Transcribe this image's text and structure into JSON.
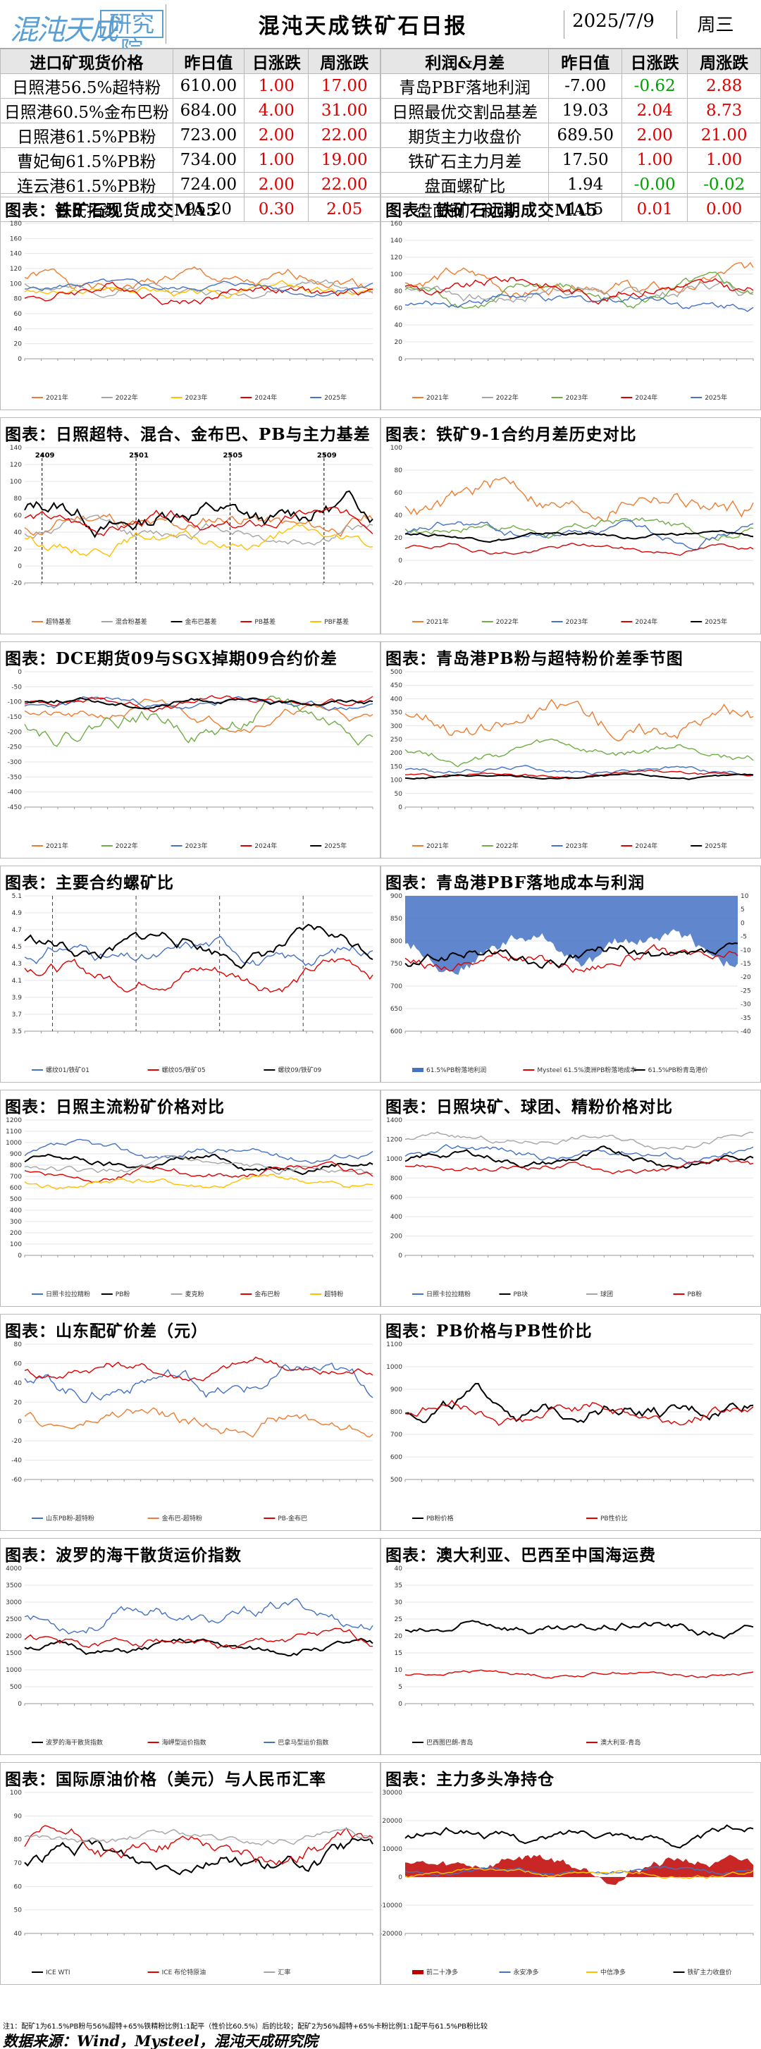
{
  "header": {
    "logo_text": "混沌天成",
    "logo_box": "研究院",
    "title": "混沌天成铁矿石日报",
    "date": "2025/7/9",
    "weekday": "周三"
  },
  "left_table": {
    "headers": [
      "进口矿现货价格",
      "昨日值",
      "日涨跌",
      "周涨跌"
    ],
    "rows": [
      {
        "name": "日照港56.5%超特粉",
        "prev": "610.00",
        "day": "1.00",
        "day_color": "red",
        "week": "17.00",
        "week_color": "red"
      },
      {
        "name": "日照港60.5%金布巴粉",
        "prev": "684.00",
        "day": "4.00",
        "day_color": "red",
        "week": "31.00",
        "week_color": "red"
      },
      {
        "name": "日照港61.5%PB粉",
        "prev": "723.00",
        "day": "2.00",
        "day_color": "red",
        "week": "22.00",
        "week_color": "red"
      },
      {
        "name": "曹妃甸61.5%PB粉",
        "prev": "734.00",
        "day": "1.00",
        "day_color": "red",
        "week": "19.00",
        "week_color": "red"
      },
      {
        "name": "连云港61.5%PB粉",
        "prev": "724.00",
        "day": "2.00",
        "day_color": "red",
        "week": "22.00",
        "week_color": "red"
      },
      {
        "name": "普氏指数",
        "prev": "95.20",
        "day": "0.30",
        "day_color": "red",
        "week": "2.05",
        "week_color": "red"
      }
    ]
  },
  "right_table": {
    "headers": [
      "利润&月差",
      "昨日值",
      "日涨跌",
      "周涨跌"
    ],
    "rows": [
      {
        "name": "青岛PBF落地利润",
        "prev": "-7.00",
        "day": "-0.62",
        "day_color": "grn",
        "week": "2.88",
        "week_color": "red"
      },
      {
        "name": "日照最优交割品基差",
        "prev": "19.03",
        "day": "2.04",
        "day_color": "red",
        "week": "8.73",
        "week_color": "red"
      },
      {
        "name": "期货主力收盘价",
        "prev": "689.50",
        "day": "2.00",
        "day_color": "red",
        "week": "21.00",
        "week_color": "red"
      },
      {
        "name": "铁矿石主力月差",
        "prev": "17.50",
        "day": "1.00",
        "day_color": "red",
        "week": "1.00",
        "week_color": "red"
      },
      {
        "name": "盘面螺矿比",
        "prev": "1.94",
        "day": "-0.00",
        "day_color": "grn",
        "week": "-0.02",
        "week_color": "grn"
      },
      {
        "name": "盘面钢厂利润",
        "prev": "1.15",
        "day": "0.01",
        "day_color": "red",
        "week": "0.00",
        "week_color": "red"
      }
    ]
  },
  "colors": {
    "red": "#e00000",
    "grn": "#00a000",
    "orange": "#ed7d31",
    "gray": "#a5a5a5",
    "yellow": "#ffc000",
    "blue": "#4472c4",
    "green": "#70ad47",
    "black": "#000000",
    "darkred": "#c00000"
  },
  "chart_data": [
    {
      "title": "图表：铁矿石现货成交MA5",
      "type": "line",
      "ylim": [
        0,
        180
      ],
      "yticks": [
        "0",
        "20",
        "40",
        "60",
        "80",
        "100",
        "120",
        "140",
        "160",
        "180"
      ],
      "series": [
        {
          "name": "2021年",
          "color": "orange",
          "seed": 1,
          "base": 100,
          "amp": 30
        },
        {
          "name": "2022年",
          "color": "gray",
          "seed": 2,
          "base": 95,
          "amp": 20
        },
        {
          "name": "2023年",
          "color": "yellow",
          "seed": 3,
          "base": 90,
          "amp": 20
        },
        {
          "name": "2024年",
          "color": "red",
          "seed": 4,
          "base": 90,
          "amp": 25
        },
        {
          "name": "2025年",
          "color": "blue",
          "seed": 5,
          "base": 95,
          "amp": 15
        }
      ]
    },
    {
      "title": "图表：铁矿石远期成交MA5",
      "type": "line",
      "ylim": [
        0,
        160
      ],
      "yticks": [
        "0",
        "20",
        "40",
        "60",
        "80",
        "100",
        "120",
        "140",
        "160"
      ],
      "series": [
        {
          "name": "2021年",
          "color": "orange",
          "seed": 6,
          "base": 90,
          "amp": 30
        },
        {
          "name": "2022年",
          "color": "gray",
          "seed": 7,
          "base": 80,
          "amp": 25
        },
        {
          "name": "2023年",
          "color": "green",
          "seed": 8,
          "base": 75,
          "amp": 25
        },
        {
          "name": "2024年",
          "color": "red",
          "seed": 9,
          "base": 85,
          "amp": 25
        },
        {
          "name": "2025年",
          "color": "blue",
          "seed": 10,
          "base": 70,
          "amp": 20
        }
      ]
    },
    {
      "title": "图表：日照超特、混合、金布巴、PB与主力基差",
      "type": "line",
      "ylim": [
        -20,
        140
      ],
      "yticks": [
        "-20",
        "0",
        "20",
        "40",
        "60",
        "80",
        "100",
        "120",
        "140"
      ],
      "annotations": [
        "2409",
        "2501",
        "2505",
        "2509"
      ],
      "series": [
        {
          "name": "超特基差",
          "color": "orange",
          "seed": 11,
          "base": 50,
          "amp": 30
        },
        {
          "name": "混合粉基差",
          "color": "gray",
          "seed": 12,
          "base": 40,
          "amp": 25
        },
        {
          "name": "金布巴基差",
          "color": "black",
          "seed": 13,
          "base": 60,
          "amp": 40
        },
        {
          "name": "PB基差",
          "color": "red",
          "seed": 14,
          "base": 50,
          "amp": 25
        },
        {
          "name": "PBF基差",
          "color": "yellow",
          "seed": 15,
          "base": 30,
          "amp": 25
        }
      ]
    },
    {
      "title": "图表：铁矿9-1合约月差历史对比",
      "type": "line",
      "ylim": [
        -20,
        100
      ],
      "yticks": [
        "-20",
        "0",
        "20",
        "40",
        "60",
        "80",
        "100"
      ],
      "series": [
        {
          "name": "2021年",
          "color": "orange",
          "seed": 16,
          "base": 55,
          "amp": 30
        },
        {
          "name": "2022年",
          "color": "green",
          "seed": 17,
          "base": 30,
          "amp": 15
        },
        {
          "name": "2023年",
          "color": "blue",
          "seed": 18,
          "base": 25,
          "amp": 15
        },
        {
          "name": "2024年",
          "color": "red",
          "seed": 19,
          "base": 10,
          "amp": 8
        },
        {
          "name": "2025年",
          "color": "black",
          "seed": 20,
          "base": 22,
          "amp": 6
        }
      ]
    },
    {
      "title": "图表：DCE期货09与SGX掉期09合约价差",
      "type": "line",
      "ylim": [
        -450,
        0
      ],
      "yticks": [
        "-450",
        "-400",
        "-350",
        "-300",
        "-250",
        "-200",
        "-150",
        "-100",
        "-50",
        "0"
      ],
      "series": [
        {
          "name": "2021年",
          "color": "orange",
          "seed": 21,
          "base": -140,
          "amp": 60
        },
        {
          "name": "2022年",
          "color": "green",
          "seed": 22,
          "base": -160,
          "amp": 100
        },
        {
          "name": "2023年",
          "color": "blue",
          "seed": 23,
          "base": -110,
          "amp": 40
        },
        {
          "name": "2024年",
          "color": "red",
          "seed": 24,
          "base": -100,
          "amp": 40
        },
        {
          "name": "2025年",
          "color": "black",
          "seed": 25,
          "base": -100,
          "amp": 30
        }
      ]
    },
    {
      "title": "图表：青岛港PB粉与超特粉价差季节图",
      "type": "line",
      "ylim": [
        0,
        500
      ],
      "yticks": [
        "0",
        "50",
        "100",
        "150",
        "200",
        "250",
        "300",
        "350",
        "400",
        "450",
        "500"
      ],
      "series": [
        {
          "name": "2021年",
          "color": "orange",
          "seed": 26,
          "base": 320,
          "amp": 120
        },
        {
          "name": "2022年",
          "color": "green",
          "seed": 27,
          "base": 200,
          "amp": 60
        },
        {
          "name": "2023年",
          "color": "blue",
          "seed": 28,
          "base": 140,
          "amp": 30
        },
        {
          "name": "2024年",
          "color": "red",
          "seed": 29,
          "base": 120,
          "amp": 20
        },
        {
          "name": "2025年",
          "color": "black",
          "seed": 30,
          "base": 110,
          "amp": 15
        }
      ]
    },
    {
      "title": "图表：主要合约螺矿比",
      "type": "line",
      "ylim": [
        3.5,
        5.1
      ],
      "yticks": [
        "3.5",
        "3.7",
        "3.9",
        "4.1",
        "4.3",
        "4.5",
        "4.7",
        "4.9",
        "5.1"
      ],
      "series": [
        {
          "name": "螺纹01/铁矿01",
          "color": "blue",
          "seed": 31,
          "base": 4.4,
          "amp": 0.3
        },
        {
          "name": "螺纹05/铁矿05",
          "color": "red",
          "seed": 32,
          "base": 4.2,
          "amp": 0.3
        },
        {
          "name": "螺纹09/铁矿09",
          "color": "black",
          "seed": 33,
          "base": 4.5,
          "amp": 0.3
        }
      ]
    },
    {
      "title": "图表：青岛港PBF落地成本与利润",
      "type": "area-line",
      "ylim": [
        600,
        900
      ],
      "yticks": [
        "600",
        "650",
        "700",
        "750",
        "800",
        "850",
        "900"
      ],
      "y2ticks": [
        "-40",
        "-35",
        "-30",
        "-25",
        "-20",
        "-15",
        "-10",
        "-5",
        "0",
        "5",
        "10"
      ],
      "series": [
        {
          "name": "61.5%PB粉落地利润",
          "color": "blue",
          "seed": 34,
          "base": -8,
          "amp": 12
        },
        {
          "name": "Mysteel 61.5%澳洲PB粉落地成本",
          "color": "red",
          "seed": 35,
          "base": 760,
          "amp": 50
        },
        {
          "name": "61.5%PB粉青岛港价",
          "color": "black",
          "seed": 36,
          "base": 760,
          "amp": 50
        }
      ]
    },
    {
      "title": "图表：日照主流粉矿价格对比",
      "type": "line",
      "ylim": [
        0,
        1200
      ],
      "yticks": [
        "0",
        "100",
        "200",
        "300",
        "400",
        "500",
        "600",
        "700",
        "800",
        "900",
        "1000",
        "1100",
        "1200"
      ],
      "series": [
        {
          "name": "日照卡拉拉精粉",
          "color": "blue",
          "seed": 37,
          "base": 900,
          "amp": 120
        },
        {
          "name": "PB粉",
          "color": "black",
          "seed": 38,
          "base": 820,
          "amp": 120
        },
        {
          "name": "麦克粉",
          "color": "gray",
          "seed": 39,
          "base": 760,
          "amp": 110
        },
        {
          "name": "金布巴粉",
          "color": "red",
          "seed": 40,
          "base": 740,
          "amp": 110
        },
        {
          "name": "超特粉",
          "color": "yellow",
          "seed": 41,
          "base": 640,
          "amp": 110
        }
      ]
    },
    {
      "title": "图表：日照块矿、球团、精粉价格对比",
      "type": "line",
      "ylim": [
        0,
        1400
      ],
      "yticks": [
        "0",
        "200",
        "400",
        "600",
        "800",
        "1000",
        "1200",
        "1400"
      ],
      "series": [
        {
          "name": "日照卡拉拉精粉",
          "color": "blue",
          "seed": 42,
          "base": 1050,
          "amp": 150
        },
        {
          "name": "PB块",
          "color": "black",
          "seed": 43,
          "base": 1000,
          "amp": 140
        },
        {
          "name": "球团",
          "color": "gray",
          "seed": 44,
          "base": 1200,
          "amp": 120
        },
        {
          "name": "PB粉",
          "color": "red",
          "seed": 45,
          "base": 900,
          "amp": 120
        }
      ]
    },
    {
      "title": "图表：山东配矿价差（元）",
      "type": "line",
      "ylim": [
        -60,
        80
      ],
      "yticks": [
        "-60",
        "-40",
        "-20",
        "0",
        "20",
        "40",
        "60",
        "80"
      ],
      "series": [
        {
          "name": "山东PB粉-超特粉",
          "color": "blue",
          "seed": 46,
          "base": 40,
          "amp": 30
        },
        {
          "name": "金布巴-超特粉",
          "color": "orange",
          "seed": 47,
          "base": 0,
          "amp": 25
        },
        {
          "name": "PB-金布巴",
          "color": "red",
          "seed": 48,
          "base": 55,
          "amp": 20
        }
      ]
    },
    {
      "title": "图表：PB价格与PB性价比",
      "type": "line",
      "ylim": [
        500,
        1100
      ],
      "yticks": [
        "500",
        "600",
        "700",
        "800",
        "900",
        "1000",
        "1100"
      ],
      "series": [
        {
          "name": "PB粉价格",
          "color": "black",
          "seed": 49,
          "base": 820,
          "amp": 120
        },
        {
          "name": "PB性价比",
          "color": "red",
          "seed": 50,
          "base": 800,
          "amp": 100
        }
      ]
    },
    {
      "title": "图表：波罗的海干散货运价指数",
      "type": "line",
      "ylim": [
        0,
        4000
      ],
      "yticks": [
        "0",
        "500",
        "1000",
        "1500",
        "2000",
        "2500",
        "3000",
        "3500",
        "4000"
      ],
      "series": [
        {
          "name": "波罗的海干散货指数",
          "color": "black",
          "seed": 51,
          "base": 1600,
          "amp": 400
        },
        {
          "name": "海岬型运价指数",
          "color": "red",
          "seed": 52,
          "base": 1800,
          "amp": 500
        },
        {
          "name": "巴拿马型运价指数",
          "color": "blue",
          "seed": 53,
          "base": 2600,
          "amp": 700
        }
      ]
    },
    {
      "title": "图表：澳大利亚、巴西至中国海运费",
      "type": "line",
      "ylim": [
        0,
        40
      ],
      "yticks": [
        "0",
        "5",
        "10",
        "15",
        "20",
        "25",
        "30",
        "35",
        "40"
      ],
      "series": [
        {
          "name": "巴西图巴朗-青岛",
          "color": "black",
          "seed": 54,
          "base": 22,
          "amp": 5
        },
        {
          "name": "澳大利亚-青岛",
          "color": "red",
          "seed": 55,
          "base": 9,
          "amp": 2
        }
      ]
    },
    {
      "title": "图表：国际原油价格（美元）与人民币汇率",
      "type": "line",
      "ylim": [
        40,
        100
      ],
      "yticks": [
        "40",
        "50",
        "60",
        "70",
        "80",
        "90",
        "100"
      ],
      "series": [
        {
          "name": "ICE WTI",
          "color": "black",
          "seed": 56,
          "base": 72,
          "amp": 12
        },
        {
          "name": "ICE 布伦特原油",
          "color": "red",
          "seed": 57,
          "base": 76,
          "amp": 12
        },
        {
          "name": "汇率",
          "color": "gray",
          "seed": 58,
          "base": 80,
          "amp": 6
        }
      ]
    },
    {
      "title": "图表：主力多头净持仓",
      "type": "area-line",
      "ylim": [
        -20000,
        30000
      ],
      "yticks": [
        "-20000",
        "-10000",
        "0",
        "10000",
        "20000",
        "30000"
      ],
      "series": [
        {
          "name": "前二十净多",
          "color": "darkred",
          "seed": 59,
          "base": 5000,
          "amp": 8000
        },
        {
          "name": "永安净多",
          "color": "blue",
          "seed": 60,
          "base": 2000,
          "amp": 3000
        },
        {
          "name": "中信净多",
          "color": "yellow",
          "seed": 61,
          "base": 1000,
          "amp": 3000
        },
        {
          "name": "铁矿主力收盘价",
          "color": "black",
          "seed": 62,
          "base": 15000,
          "amp": 6000
        }
      ]
    }
  ],
  "footer": {
    "note": "注1：配矿1为61.5%PB粉与56%超特+65%铁精粉比例1:1配平（性价比60.5%）后的比较；配矿2为56%超特+65%卡粉比例1:1配平与61.5%PB粉比较",
    "source": "数据来源：Wind，Mysteel，混沌天成研究院"
  }
}
